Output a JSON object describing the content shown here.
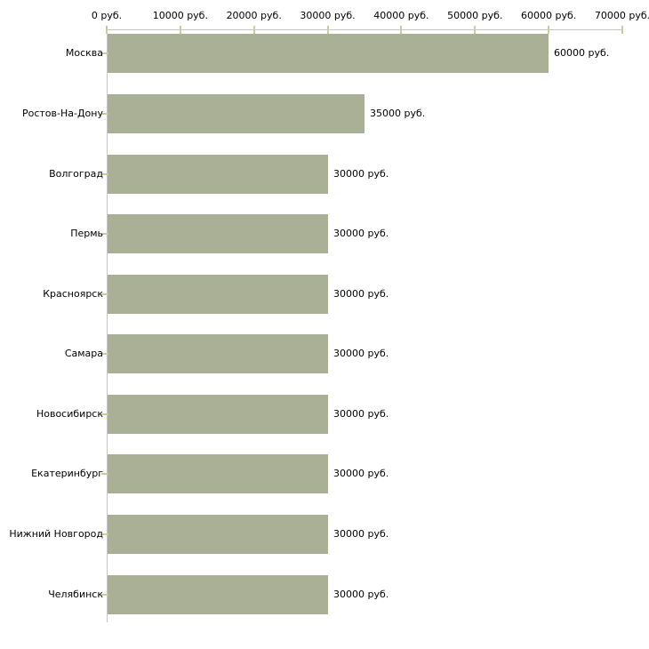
{
  "chart_data": {
    "type": "bar",
    "orientation": "horizontal",
    "title": "",
    "xlabel": "",
    "ylabel": "",
    "unit": "руб.",
    "xlim": [
      0,
      70000
    ],
    "grid": false,
    "legend": false,
    "categories": [
      "Москва",
      "Ростов-На-Дону",
      "Волгоград",
      "Пермь",
      "Красноярск",
      "Самара",
      "Новосибирск",
      "Екатеринбург",
      "Нижний Новгород",
      "Челябинск"
    ],
    "values": [
      60000,
      35000,
      30000,
      30000,
      30000,
      30000,
      30000,
      30000,
      30000,
      30000
    ],
    "value_labels": [
      "60000 руб.",
      "35000 руб.",
      "30000 руб.",
      "30000 руб.",
      "30000 руб.",
      "30000 руб.",
      "30000 руб.",
      "30000 руб.",
      "30000 руб.",
      "30000 руб."
    ],
    "x_tick_values": [
      0,
      10000,
      20000,
      30000,
      40000,
      50000,
      60000,
      70000
    ],
    "x_tick_labels": [
      "0 руб.",
      "10000 руб.",
      "20000 руб.",
      "30000 руб.",
      "40000 руб.",
      "50000 руб.",
      "60000 руб.",
      "70000 руб."
    ],
    "colors": {
      "bar": "#a9b096",
      "axis": "#c6c6c6",
      "tick": "#cccc99",
      "text": "#000000",
      "background": "#ffffff"
    }
  }
}
